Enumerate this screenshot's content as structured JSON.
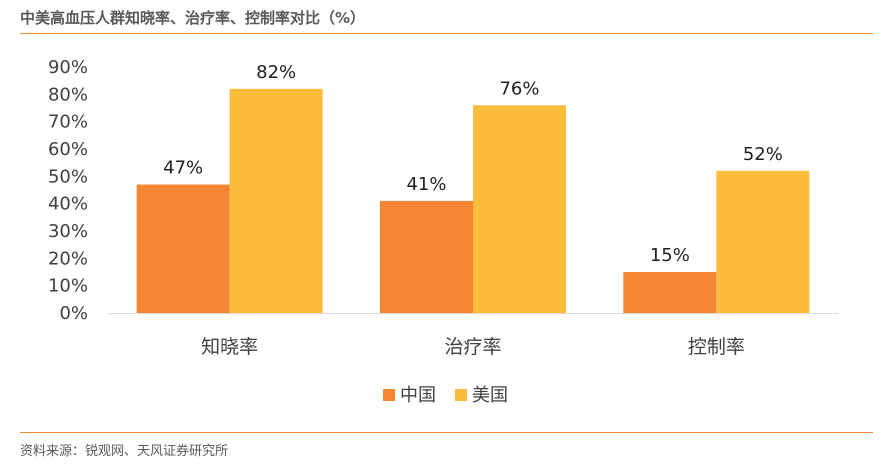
{
  "title": "中美高血压人群知晓率、治疗率、控制率对比（%）",
  "source": "资料来源：锐观网、天风证券研究所",
  "chart_data": {
    "type": "bar",
    "categories": [
      "知晓率",
      "治疗率",
      "控制率"
    ],
    "series": [
      {
        "name": "中国",
        "values": [
          47,
          41,
          15
        ],
        "labels": [
          "47%",
          "41%",
          "15%"
        ],
        "color": "#f58634"
      },
      {
        "name": "美国",
        "values": [
          82,
          76,
          52
        ],
        "labels": [
          "82%",
          "76%",
          "52%"
        ],
        "color": "#fcbd3d"
      }
    ],
    "yticks": [
      "0%",
      "10%",
      "20%",
      "30%",
      "40%",
      "50%",
      "60%",
      "70%",
      "80%",
      "90%"
    ],
    "ylim": [
      0,
      90
    ],
    "legend_position": "bottom",
    "grid": false
  }
}
